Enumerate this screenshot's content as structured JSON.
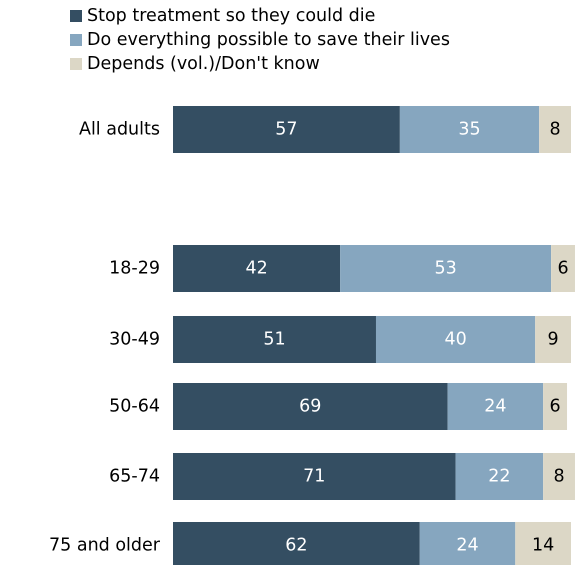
{
  "chart_data": {
    "type": "bar",
    "orientation": "horizontal",
    "stacked": true,
    "categories": [
      "All adults",
      "18-29",
      "30-49",
      "50-64",
      "65-74",
      "75 and older"
    ],
    "series": [
      {
        "name": "Stop treatment so they could die",
        "color": "#344e62",
        "label_color": "#ffffff",
        "values": [
          57,
          42,
          51,
          69,
          71,
          62
        ]
      },
      {
        "name": "Do everything possible to save their lives",
        "color": "#86a6bf",
        "label_color": "#ffffff",
        "values": [
          35,
          53,
          40,
          24,
          22,
          24
        ]
      },
      {
        "name": "Depends (vol.)/Don't know",
        "color": "#dcd7c6",
        "label_color": "#000000",
        "values": [
          8,
          6,
          9,
          6,
          8,
          14
        ]
      }
    ],
    "xlim": [
      0,
      100
    ],
    "grid": false,
    "legend_position": "top"
  }
}
